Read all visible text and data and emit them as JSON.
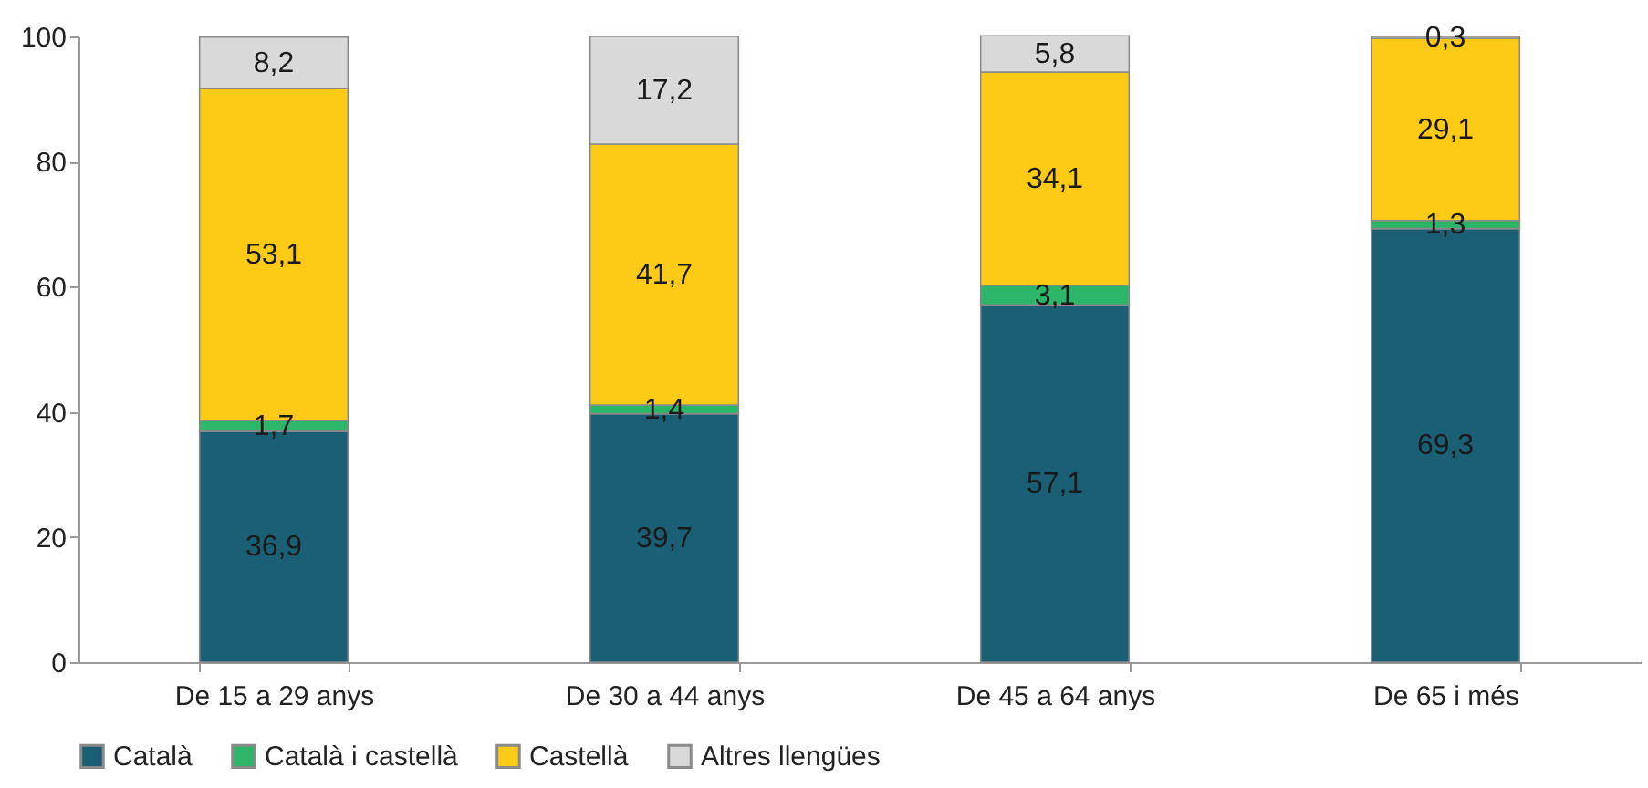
{
  "chart_data": {
    "type": "bar",
    "stacked": true,
    "categories": [
      "De 15 a 29 anys",
      "De 30 a 44 anys",
      "De 45 a 64 anys",
      "De 65 i més"
    ],
    "series": [
      {
        "name": "Català",
        "color": "#1a5f74",
        "values": [
          36.9,
          39.7,
          57.1,
          69.3
        ],
        "value_labels": [
          "36,9",
          "39,7",
          "57,1",
          "69,3"
        ]
      },
      {
        "name": "Català i castellà",
        "color": "#2db56a",
        "values": [
          1.7,
          1.4,
          3.1,
          1.3
        ],
        "value_labels": [
          "1,7",
          "1,4",
          "3,1",
          "1,3"
        ]
      },
      {
        "name": "Castellà",
        "color": "#fdcb16",
        "values": [
          53.1,
          41.7,
          34.1,
          29.1
        ],
        "value_labels": [
          "53,1",
          "41,7",
          "34,1",
          "29,1"
        ]
      },
      {
        "name": "Altres llengües",
        "color": "#d9d9d9",
        "values": [
          8.2,
          17.2,
          5.8,
          0.3
        ],
        "value_labels": [
          "8,2",
          "17,2",
          "5,8",
          "0,3"
        ]
      }
    ],
    "ylim": [
      0,
      100
    ],
    "yticks": [
      0,
      20,
      40,
      60,
      80,
      100
    ],
    "legend": "bottom"
  }
}
